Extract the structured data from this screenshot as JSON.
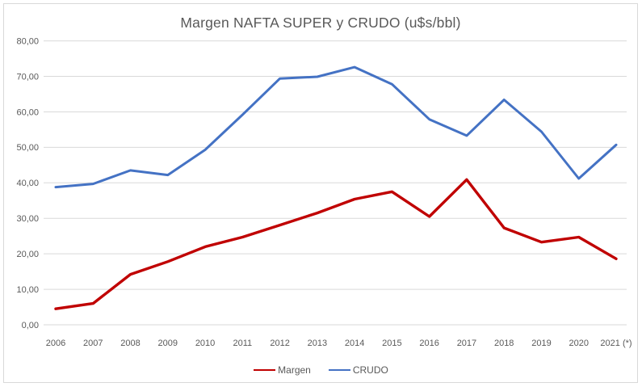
{
  "chart_data": {
    "type": "line",
    "title": "Margen NAFTA SUPER y CRUDO (u$s/bbl)",
    "categories": [
      "2006",
      "2007",
      "2008",
      "2009",
      "2010",
      "2011",
      "2012",
      "2013",
      "2014",
      "2015",
      "2016",
      "2017",
      "2018",
      "2019",
      "2020",
      "2021 (*)"
    ],
    "series": [
      {
        "name": "Margen",
        "color": "#C00000",
        "stroke_width": 3.4,
        "values": [
          4.5,
          6.0,
          14.2,
          17.8,
          22.0,
          24.7,
          28.1,
          31.5,
          35.4,
          37.5,
          30.5,
          40.9,
          27.3,
          23.3,
          24.7,
          18.6
        ]
      },
      {
        "name": "CRUDO",
        "color": "#4472C4",
        "stroke_width": 3.0,
        "values": [
          38.8,
          39.7,
          43.5,
          42.2,
          49.3,
          59.2,
          69.4,
          69.9,
          72.6,
          67.8,
          57.9,
          53.3,
          63.4,
          54.4,
          41.2,
          50.7
        ]
      }
    ],
    "ylim": [
      0,
      80
    ],
    "ytick_step": 10,
    "ytick_labels": [
      "0,00",
      "10,00",
      "20,00",
      "30,00",
      "40,00",
      "50,00",
      "60,00",
      "70,00",
      "80,00"
    ],
    "grid": true,
    "gridline_color": "#D9D9D9",
    "axis_label_color": "#595959",
    "title_color": "#595959",
    "frame_border_color": "#D9D9D9",
    "legend_position": "bottom"
  }
}
